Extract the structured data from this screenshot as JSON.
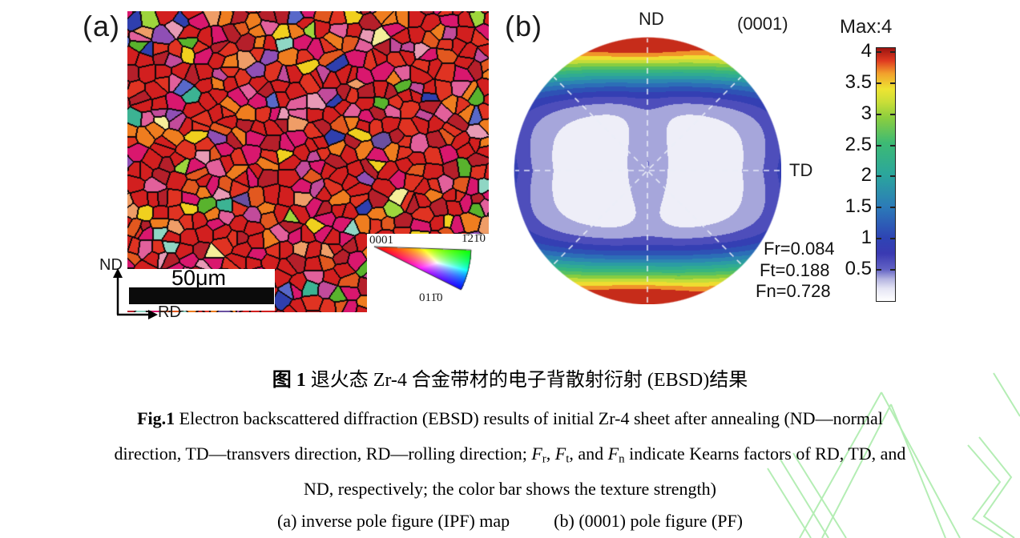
{
  "figure": {
    "panel_a": {
      "label": "(a)",
      "axis_vertical": "ND",
      "axis_horizontal": "RD",
      "scale_bar_text": "50μm",
      "ipf_key": {
        "top_left": "0001",
        "top_right": "1̄21̄0",
        "bottom": "011̄0"
      },
      "grain_palette": [
        {
          "color": "#d21f1f",
          "w": 30
        },
        {
          "color": "#e03322",
          "w": 12
        },
        {
          "color": "#b51f2a",
          "w": 10
        },
        {
          "color": "#ef7d1f",
          "w": 9
        },
        {
          "color": "#e2581f",
          "w": 5
        },
        {
          "color": "#d9176e",
          "w": 9
        },
        {
          "color": "#e2609b",
          "w": 5
        },
        {
          "color": "#ef9d67",
          "w": 3
        },
        {
          "color": "#c24b9b",
          "w": 3
        },
        {
          "color": "#8f4fb5",
          "w": 2
        },
        {
          "color": "#f0d01e",
          "w": 2.5
        },
        {
          "color": "#f5ef9a",
          "w": 0.8
        },
        {
          "color": "#59b32d",
          "w": 1.5
        },
        {
          "color": "#9ed63c",
          "w": 0.8
        },
        {
          "color": "#2f3fae",
          "w": 1.5
        },
        {
          "color": "#5868c9",
          "w": 0.8
        },
        {
          "color": "#3cb393",
          "w": 1.2
        },
        {
          "color": "#8fd6c4",
          "w": 0.7
        },
        {
          "color": "#e89ab5",
          "w": 1.2
        },
        {
          "color": "#6a4fa0",
          "w": 0.8
        }
      ]
    },
    "panel_b": {
      "label": "(b)",
      "top_axis": "ND",
      "plane": "(0001)",
      "right_axis": "TD",
      "kearns": {
        "fr": "Fr=0.084",
        "ft": "Ft=0.188",
        "fn": "Fn=0.728"
      },
      "colorbar": {
        "max_label": "Max:4",
        "ticks": [
          "4",
          "3.5",
          "3",
          "2.5",
          "2",
          "1.5",
          "1",
          "0.5"
        ],
        "stops": [
          [
            0,
            "#ffffff"
          ],
          [
            0.2,
            "#e4e4f4"
          ],
          [
            0.35,
            "#b4b4e0"
          ],
          [
            0.5,
            "#6262c4"
          ],
          [
            0.75,
            "#3a3ab2"
          ],
          [
            1.0,
            "#2e44b4"
          ],
          [
            1.5,
            "#2c7cb8"
          ],
          [
            2.0,
            "#2ba69c"
          ],
          [
            2.5,
            "#3dba74"
          ],
          [
            2.9,
            "#8cce3e"
          ],
          [
            3.15,
            "#cade38"
          ],
          [
            3.35,
            "#eee432"
          ],
          [
            3.6,
            "#f2a02c"
          ],
          [
            3.8,
            "#df3a20"
          ],
          [
            4.0,
            "#9c1410"
          ]
        ]
      }
    },
    "caption": {
      "line1": [
        {
          "t": "图 1",
          "style": "b"
        },
        {
          "t": "  退火态 Zr-4 合金带材的电子背散射衍射 (EBSD)结果"
        }
      ],
      "line2": [
        {
          "t": "Fig.1",
          "style": "b"
        },
        {
          "t": " Electron backscattered diffraction (EBSD) results of initial Zr-4 sheet after annealing (ND—normal"
        }
      ],
      "line3": [
        {
          "t": "direction, TD—transvers direction, RD—rolling direction; "
        },
        {
          "t": "F",
          "style": "i"
        },
        {
          "t": "r",
          "style": "sub"
        },
        {
          "t": ", "
        },
        {
          "t": "F",
          "style": "i"
        },
        {
          "t": "t",
          "style": "sub"
        },
        {
          "t": ", and "
        },
        {
          "t": "F",
          "style": "i"
        },
        {
          "t": "n",
          "style": "sub"
        },
        {
          "t": " indicate Kearns factors of RD, TD, and"
        }
      ],
      "line4": "ND, respectively; the color bar shows the texture strength)",
      "line5_left": "(a) inverse pole figure (IPF) map",
      "line5_right": "(b) (0001) pole figure (PF)"
    },
    "watermark_color": "#9ce89c"
  }
}
